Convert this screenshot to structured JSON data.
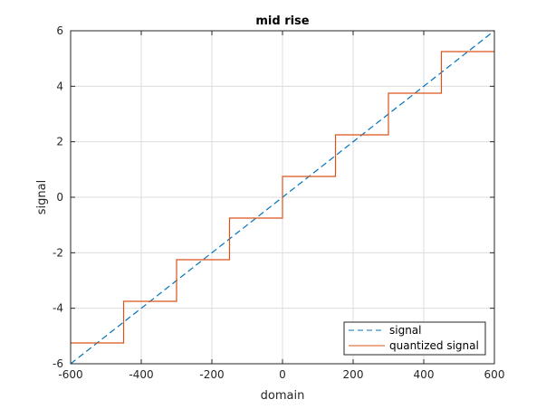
{
  "chart_data": {
    "type": "line",
    "title": "mid rise",
    "xlabel": "domain",
    "ylabel": "signal",
    "xlim": [
      -600,
      600
    ],
    "ylim": [
      -6,
      6
    ],
    "xticks": [
      -600,
      -400,
      -200,
      0,
      200,
      400,
      600
    ],
    "yticks": [
      -6,
      -4,
      -2,
      0,
      2,
      4,
      6
    ],
    "x_tick_labels": [
      "-600",
      "-400",
      "-200",
      "0",
      "200",
      "400",
      "600"
    ],
    "y_tick_labels": [
      "-6",
      "-4",
      "-2",
      "0",
      "2",
      "4",
      "6"
    ],
    "grid": true,
    "legend_position": "bottom-right",
    "series": [
      {
        "name": "signal",
        "style": "dashed",
        "color": "#0072BD",
        "x": [
          -600,
          600
        ],
        "y": [
          -6,
          6
        ]
      },
      {
        "name": "quantized signal",
        "style": "step",
        "color": "#D95319",
        "x": [
          -600,
          -450,
          -450,
          -300,
          -300,
          -150,
          -150,
          0,
          0,
          150,
          150,
          300,
          300,
          450,
          450,
          600
        ],
        "y": [
          -5.25,
          -5.25,
          -3.75,
          -3.75,
          -2.25,
          -2.25,
          -0.75,
          -0.75,
          0.75,
          0.75,
          2.25,
          2.25,
          3.75,
          3.75,
          5.25,
          5.25
        ]
      }
    ]
  }
}
